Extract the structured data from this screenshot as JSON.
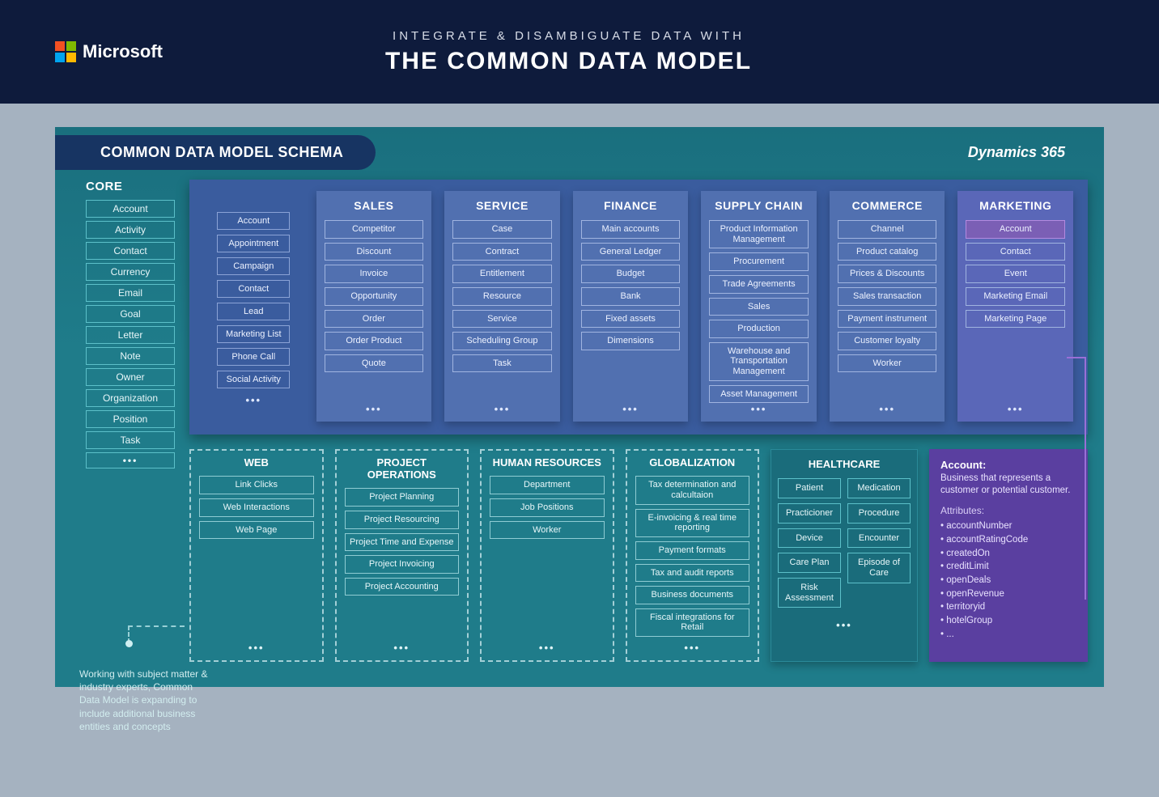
{
  "colors": {
    "page_bg": "#a5b2c0",
    "header_bg": "#0e1b3c",
    "frame_bg": "#1f7c8a",
    "pill_bg": "#173462",
    "top_panel_bg": "#3a5c9e",
    "boxed_col_bg": "#5170b0",
    "marketing_col_bg": "#5a67b8",
    "detail_bg": "#5a3fa0",
    "ms_red": "#f25022",
    "ms_green": "#7fba00",
    "ms_blue": "#00a4ef",
    "ms_yellow": "#ffb900"
  },
  "header": {
    "brand": "Microsoft",
    "subtitle": "INTEGRATE & DISAMBIGUATE DATA WITH",
    "title": "THE COMMON DATA MODEL"
  },
  "schema": {
    "pill": "COMMON DATA MODEL SCHEMA",
    "product": "Dynamics 365"
  },
  "core": {
    "title": "CORE",
    "items": [
      "Account",
      "Activity",
      "Contact",
      "Currency",
      "Email",
      "Goal",
      "Letter",
      "Note",
      "Owner",
      "Organization",
      "Position",
      "Task"
    ]
  },
  "note": "Working with subject matter & industry experts, Common Data Model is expanding to include additional business entities and concepts",
  "top_first": {
    "items": [
      "Account",
      "Appointment",
      "Campaign",
      "Contact",
      "Lead",
      "Marketing List",
      "Phone Call",
      "Social Activity"
    ]
  },
  "top_cols": [
    {
      "title": "SALES",
      "items": [
        "Competitor",
        "Discount",
        "Invoice",
        "Opportunity",
        "Order",
        "Order Product",
        "Quote"
      ]
    },
    {
      "title": "SERVICE",
      "items": [
        "Case",
        "Contract",
        "Entitlement",
        "Resource",
        "Service",
        "Scheduling Group",
        "Task"
      ]
    },
    {
      "title": "FINANCE",
      "items": [
        "Main accounts",
        "General Ledger",
        "Budget",
        "Bank",
        "Fixed assets",
        "Dimensions"
      ]
    },
    {
      "title": "SUPPLY CHAIN",
      "items": [
        "Product Information Management",
        "Procurement",
        "Trade Agreements",
        "Sales",
        "Production",
        "Warehouse and Transportation Management",
        "Asset Management"
      ]
    },
    {
      "title": "COMMERCE",
      "items": [
        "Channel",
        "Product catalog",
        "Prices & Discounts",
        "Sales transaction",
        "Payment instrument",
        "Customer loyalty",
        "Worker"
      ]
    },
    {
      "title": "MARKETING",
      "marketing": true,
      "items": [
        "Account",
        "Contact",
        "Event",
        "Marketing Email",
        "Marketing Page"
      ]
    }
  ],
  "bottom_dashed": [
    {
      "title": "WEB",
      "items": [
        "Link Clicks",
        "Web Interactions",
        "Web Page"
      ]
    },
    {
      "title": "PROJECT OPERATIONS",
      "items": [
        "Project Planning",
        "Project Resourcing",
        "Project Time and Expense",
        "Project Invoicing",
        "Project Accounting"
      ]
    },
    {
      "title": "HUMAN RESOURCES",
      "items": [
        "Department",
        "Job Positions",
        "Worker"
      ]
    },
    {
      "title": "GLOBALIZATION",
      "items": [
        "Tax determination and calcultaion",
        "E-invoicing & real time reporting",
        "Payment formats",
        "Tax and audit reports",
        "Business documents",
        "Fiscal integrations for Retail"
      ]
    }
  ],
  "healthcare": {
    "title": "HEALTHCARE",
    "left": [
      "Patient",
      "Practicioner",
      "Device",
      "Care Plan",
      "Risk Assessment"
    ],
    "right": [
      "Medication",
      "Procedure",
      "Encounter",
      "Episode of Care"
    ]
  },
  "detail": {
    "title": "Account:",
    "desc": "Business that represents a customer or potential customer.",
    "attr_label": "Attributes:",
    "attrs": [
      "accountNumber",
      "accountRatingCode",
      "createdOn",
      "creditLimit",
      "openDeals",
      "openRevenue",
      "territoryid",
      "hotelGroup",
      "..."
    ]
  },
  "ellipsis": "•••"
}
